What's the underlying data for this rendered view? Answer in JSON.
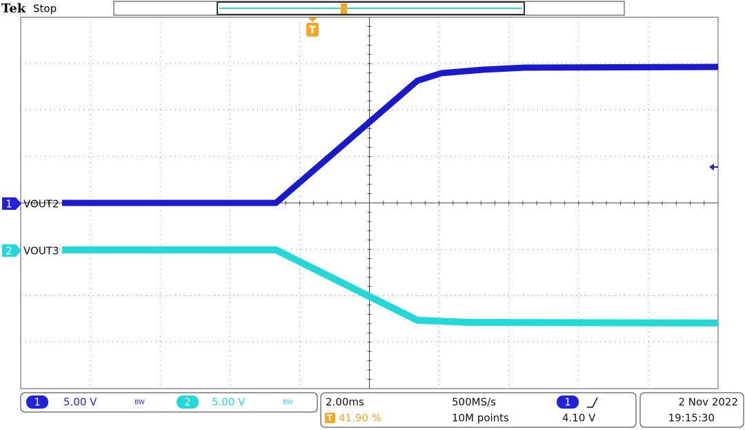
{
  "header": {
    "brand": "Tek",
    "status": "Stop"
  },
  "channels": [
    {
      "number": "1",
      "label": "VOUT2",
      "scale": "5.00 V",
      "bandwidth": "BW"
    },
    {
      "number": "2",
      "label": "VOUT3",
      "scale": "5.00 V",
      "bandwidth": "BW"
    }
  ],
  "trigger": {
    "marker": "T",
    "position": "41.90 %",
    "source": "1",
    "level": "4.10 V"
  },
  "acquisition": {
    "timebase": "2.00ms",
    "sample_rate": "500MS/s",
    "record_length": "10M points"
  },
  "timestamp": {
    "date": "2 Nov 2022",
    "time": "19:15:30"
  }
}
